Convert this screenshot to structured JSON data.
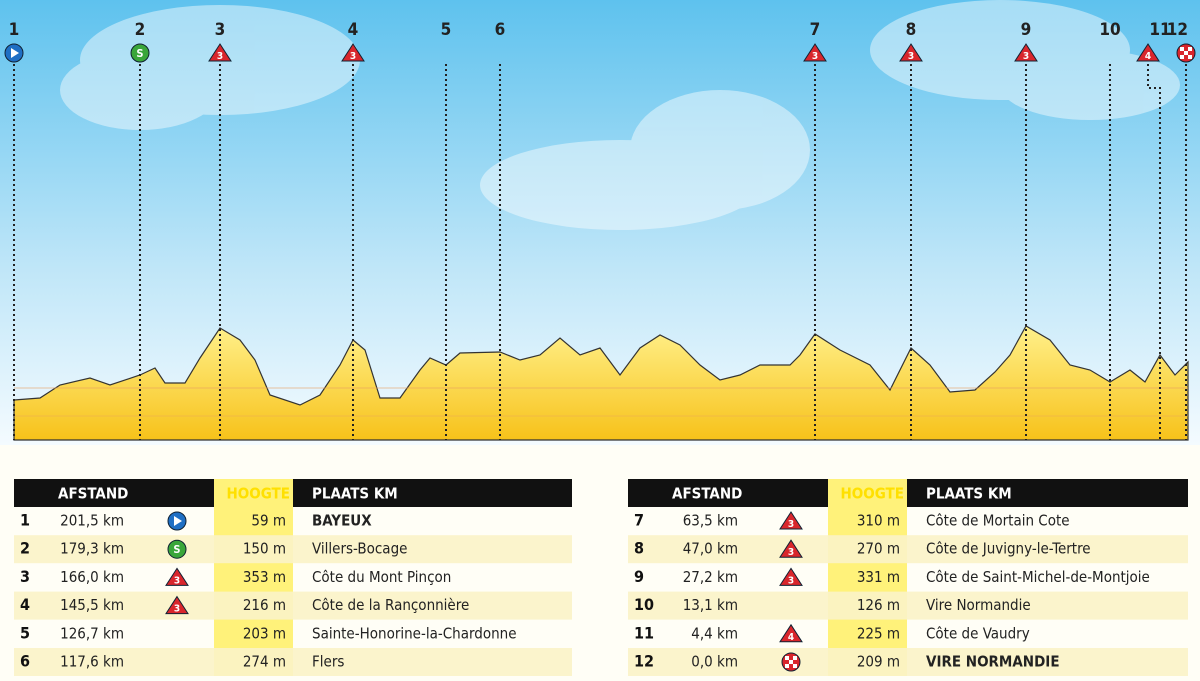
{
  "tables": [
    {
      "header": [
        "AFSTAND",
        "HOOGTE",
        "PLAATS KM"
      ],
      "rows": [
        {
          "nr": "1",
          "afstand": "201,5 km",
          "hoogte": "59 m",
          "plaats": "BAYEUX"
        },
        {
          "nr": "2",
          "afstand": "179,3 km",
          "icon": "S",
          "hoogte": "150 m",
          "plaats": "Villers-Bocage"
        },
        {
          "nr": "3",
          "afstand": "166,0 km",
          "icon": "3",
          "hoogte": "353 m",
          "plaats": "Côte du Mont Pinçon"
        },
        {
          "nr": "4",
          "afstand": "145,5 km",
          "icon": "3",
          "hoogte": "216 m",
          "plaats": "Côte de la Rançonnière"
        },
        {
          "nr": "5",
          "afstand": "126,7 km",
          "hoogte": "203 m",
          "plaats": "Sainte-Honorine-la-Chardonne"
        },
        {
          "nr": "6",
          "afstand": "117,6 km",
          "hoogte": "274 m",
          "plaats": "Flers"
        }
      ]
    },
    {
      "header": [
        "AFSTAND",
        "HOOGTE",
        "PLAATS KM"
      ],
      "rows": [
        {
          "nr": "7",
          "afstand": "63,5 km",
          "icon": "3",
          "hoogte": "310 m",
          "plaats": "Côte de Mortain Cote"
        },
        {
          "nr": "8",
          "afstand": "47,0 km",
          "icon": "3",
          "hoogte": "270 m",
          "plaats": "Côte de Juvigny-le-Tertre"
        },
        {
          "nr": "9",
          "afstand": "27,2 km",
          "icon": "3",
          "hoogte": "331 m",
          "plaats": "Côte de Saint-Michel-de-Montjoie"
        },
        {
          "nr": "10",
          "afstand": "13,1 km",
          "hoogte": "126 m",
          "plaats": "Vire Normandie"
        },
        {
          "nr": "11",
          "afstand": "4,4 km",
          "icon": "4",
          "hoogte": "225 m",
          "plaats": "Côte de Vaudry"
        },
        {
          "nr": "12",
          "afstand": "0,0 km",
          "hoogte": "209 m",
          "plaats": "VIRE NORMANDIE"
        }
      ]
    }
  ]
}
